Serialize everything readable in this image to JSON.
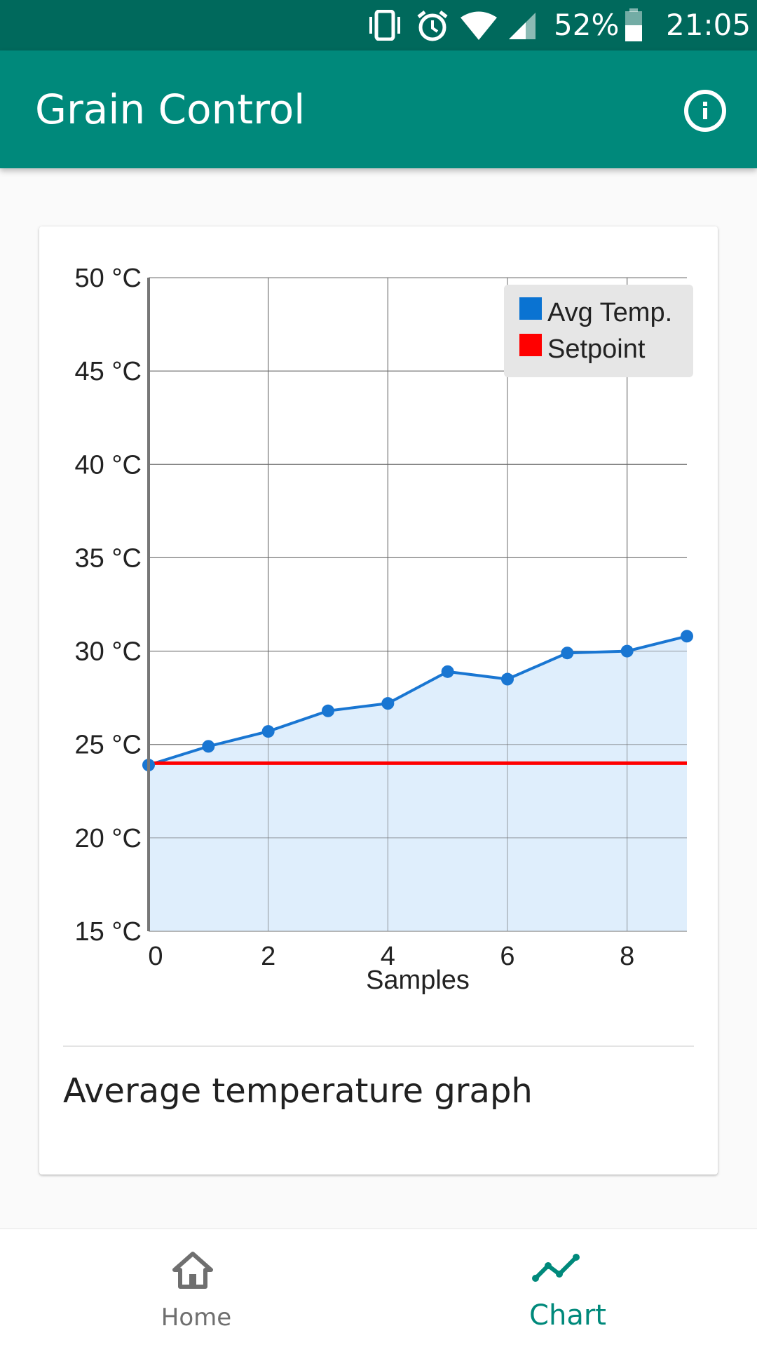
{
  "status_bar": {
    "battery_percent": "52%",
    "time": "21:05",
    "icons": [
      "vibrate-icon",
      "alarm-icon",
      "wifi-icon",
      "signal-icon",
      "battery-icon"
    ]
  },
  "app_bar": {
    "title": "Grain Control",
    "info_icon": "info-icon"
  },
  "card": {
    "title": "Average temperature graph"
  },
  "chart_data": {
    "type": "area",
    "xlabel": "Samples",
    "ylabel": "",
    "x": [
      0,
      1,
      2,
      3,
      4,
      5,
      6,
      7,
      8,
      9
    ],
    "xlim": [
      0,
      9
    ],
    "ylim": [
      15,
      50
    ],
    "x_ticks": [
      "0",
      "2",
      "4",
      "6",
      "8"
    ],
    "y_ticks": [
      "15 °C",
      "20 °C",
      "25 °C",
      "30 °C",
      "35 °C",
      "40 °C",
      "45 °C",
      "50 °C"
    ],
    "grid": true,
    "legend_position": "top-right",
    "series": [
      {
        "name": "Avg Temp.",
        "type": "area",
        "color": "#1976d2",
        "fill": "#dcecfc",
        "values": [
          23.9,
          24.9,
          25.7,
          26.8,
          27.2,
          28.9,
          28.5,
          29.9,
          30.0,
          30.8
        ]
      },
      {
        "name": "Setpoint",
        "type": "line",
        "color": "#ff0000",
        "values": [
          24,
          24,
          24,
          24,
          24,
          24,
          24,
          24,
          24,
          24
        ]
      }
    ]
  },
  "bottom_nav": {
    "items": [
      {
        "label": "Home",
        "icon": "home-icon",
        "active": false
      },
      {
        "label": "Chart",
        "icon": "chart-icon",
        "active": true
      }
    ],
    "active_color": "#00897b"
  }
}
